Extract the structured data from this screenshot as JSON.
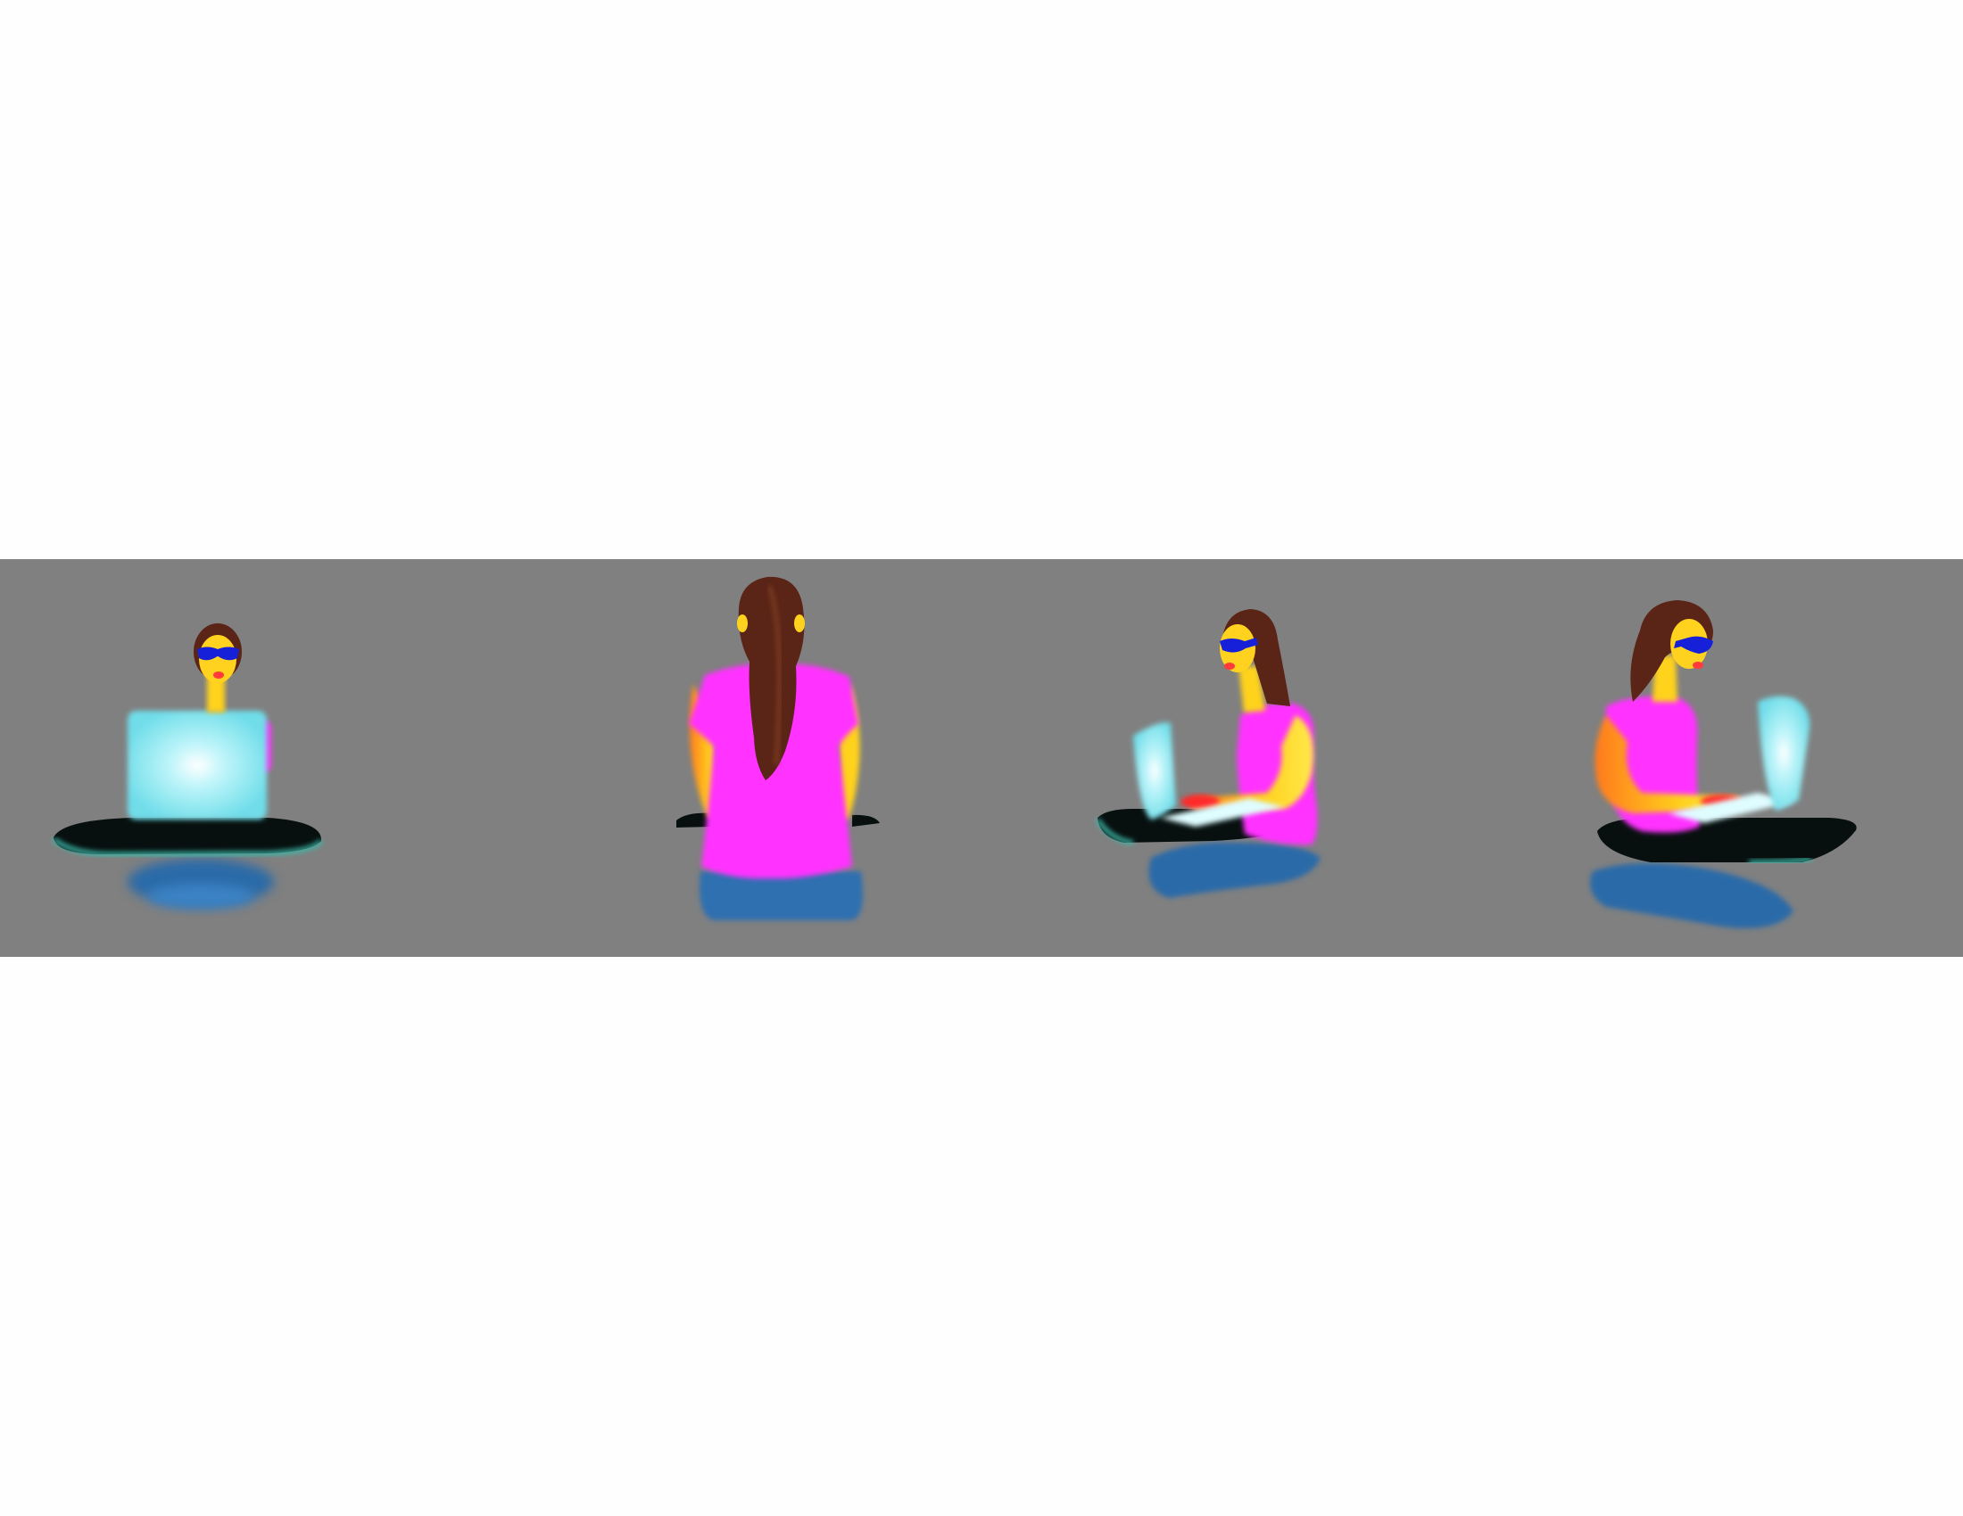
{
  "figure": {
    "panel_count": 4,
    "views": [
      "front",
      "back",
      "three-quarter-left",
      "three-quarter-right"
    ],
    "colors": {
      "background_strip": "#808080",
      "page": "#fefefe",
      "shirt": "#ff33ff",
      "skin": "#ffd21f",
      "hair": "#5a2416",
      "glasses": "#1520d8",
      "laptop": "#7fe6f0",
      "laptop_glow": "#e6ffff",
      "table": "#0a0f12",
      "table_edge": "#3aa6a0",
      "jeans": "#2f6fb0"
    }
  }
}
